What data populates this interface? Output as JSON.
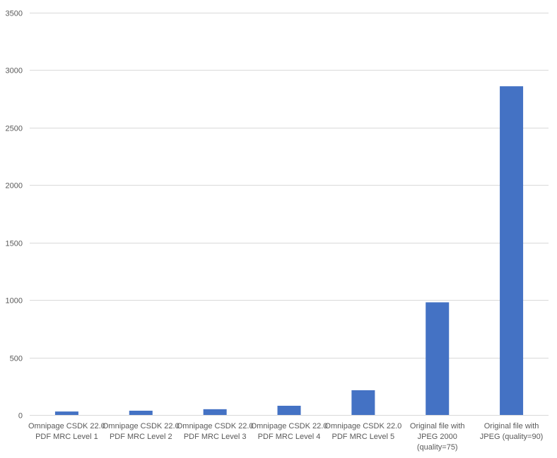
{
  "chart_data": {
    "type": "bar",
    "title": "",
    "xlabel": "",
    "ylabel": "",
    "ylim": [
      0,
      3500
    ],
    "yticks": [
      0,
      500,
      1000,
      1500,
      2000,
      2500,
      3000,
      3500
    ],
    "grid": true,
    "legend": "none",
    "categories": [
      [
        "Omnipage CSDK 22.0",
        "PDF MRC Level 1"
      ],
      [
        "Omnipage CSDK 22.0",
        "PDF MRC Level 2"
      ],
      [
        "Omnipage CSDK 22.0",
        "PDF MRC Level 3"
      ],
      [
        "Omnipage CSDK 22.0",
        "PDF MRC Level 4"
      ],
      [
        "Omnipage CSDK 22.0",
        "PDF MRC Level 5"
      ],
      [
        "Original file with",
        "JPEG 2000",
        "(quality=75)"
      ],
      [
        "Original file with",
        "JPEG (quality=90)"
      ]
    ],
    "values": [
      30,
      37,
      50,
      80,
      215,
      980,
      2860
    ],
    "colors": {
      "bar": "#4472C4",
      "grid": "#d9d9d9",
      "text": "#595959"
    }
  }
}
